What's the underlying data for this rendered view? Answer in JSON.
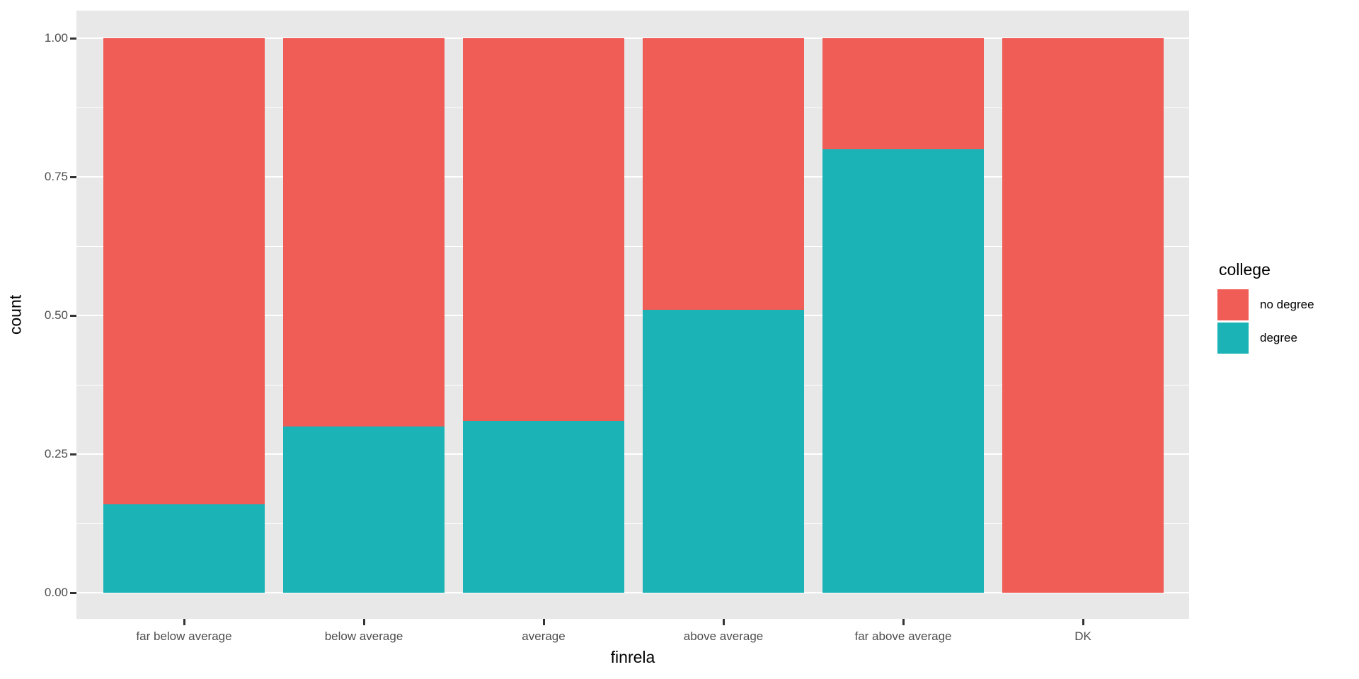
{
  "chart_data": {
    "type": "bar",
    "stacked": true,
    "normalized_fill": true,
    "xlabel": "finrela",
    "ylabel": "count",
    "categories": [
      "far below average",
      "below average",
      "average",
      "above average",
      "far above average",
      "DK"
    ],
    "series": [
      {
        "name": "no degree",
        "color": "#F05C56",
        "values": [
          0.84,
          0.7,
          0.69,
          0.49,
          0.2,
          1.0
        ]
      },
      {
        "name": "degree",
        "color": "#1BB3B5",
        "values": [
          0.16,
          0.3,
          0.31,
          0.51,
          0.8,
          0.0
        ]
      }
    ],
    "ylim": [
      0,
      1
    ],
    "y_major_ticks": [
      {
        "label": "0.00",
        "value": 0.0
      },
      {
        "label": "0.25",
        "value": 0.25
      },
      {
        "label": "0.50",
        "value": 0.5
      },
      {
        "label": "0.75",
        "value": 0.75
      },
      {
        "label": "1.00",
        "value": 1.0
      }
    ],
    "y_minor_ticks": [
      0.125,
      0.375,
      0.625,
      0.875
    ],
    "grid_on": true,
    "legend": {
      "title": "college",
      "position": "right",
      "entries": [
        {
          "label": "no degree",
          "color": "#F05C56"
        },
        {
          "label": "degree",
          "color": "#1BB3B5"
        }
      ]
    },
    "colors": {
      "panel_background": "#E8E8E8",
      "gridline": "#FFFFFF",
      "tick_label": "#4D4D4D",
      "axis_title": "#000000"
    }
  }
}
